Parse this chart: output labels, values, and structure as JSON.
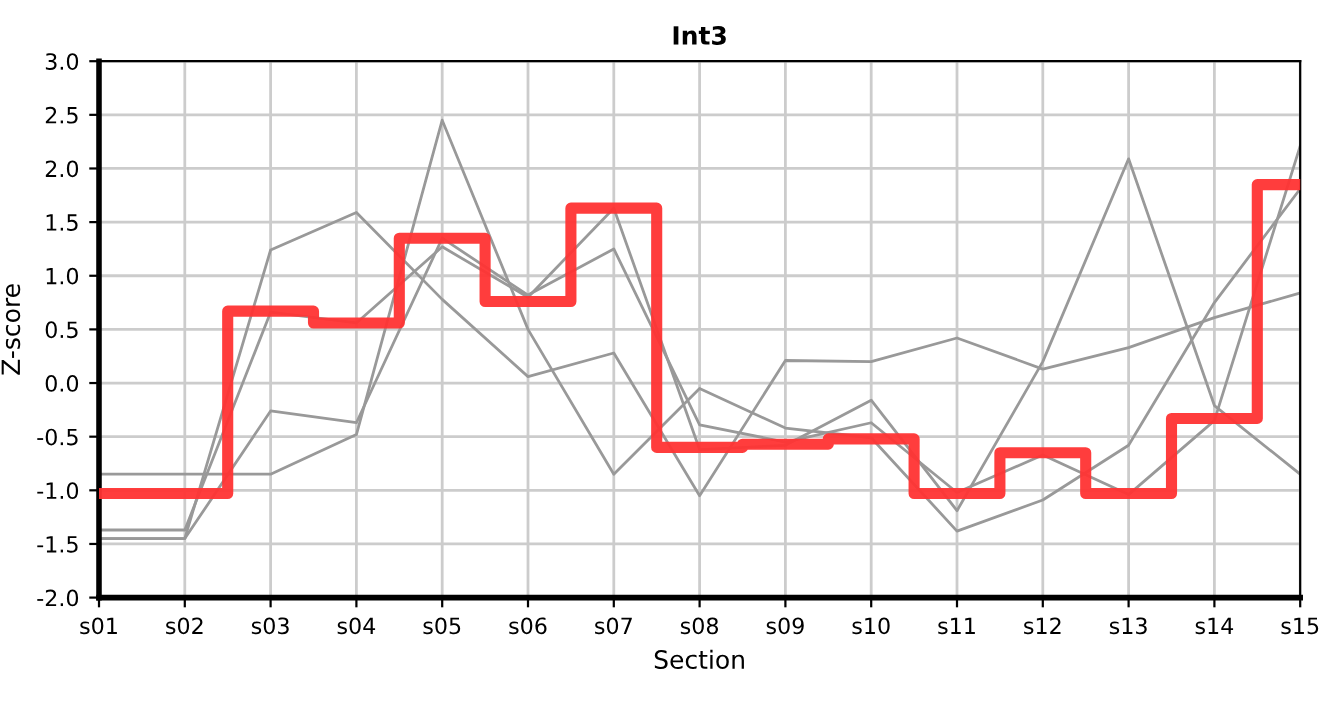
{
  "chart_data": {
    "type": "line",
    "title": "Int3",
    "xlabel": "Section",
    "ylabel": "Z-score",
    "categories": [
      "s01",
      "s02",
      "s03",
      "s04",
      "s05",
      "s06",
      "s07",
      "s08",
      "s09",
      "s10",
      "s11",
      "s12",
      "s13",
      "s14",
      "s15"
    ],
    "ylim": [
      -2,
      3
    ],
    "yticks": [
      {
        "value": -2,
        "label": "-2.0"
      },
      {
        "value": -1.5,
        "label": "-1.5"
      },
      {
        "value": -1,
        "label": "-1.0"
      },
      {
        "value": -0.5,
        "label": "-0.5"
      },
      {
        "value": 0,
        "label": "0.0"
      },
      {
        "value": 0.5,
        "label": "0.5"
      },
      {
        "value": 1,
        "label": "1.0"
      },
      {
        "value": 1.5,
        "label": "1.5"
      },
      {
        "value": 2,
        "label": "2.0"
      },
      {
        "value": 2.5,
        "label": "2.5"
      },
      {
        "value": 3,
        "label": "3.0"
      }
    ],
    "grid": true,
    "legend": false,
    "marker": "none",
    "line_style": "solid",
    "series": [
      {
        "color": "#999999",
        "values": [
          -1.37,
          -1.37,
          0.66,
          0.56,
          1.27,
          0.8,
          1.63,
          -0.62,
          -0.58,
          -0.16,
          -1.19,
          0.2,
          2.09,
          -0.21,
          -0.85
        ]
      },
      {
        "color": "#999999",
        "values": [
          -1.45,
          -1.45,
          -0.26,
          -0.37,
          1.35,
          0.82,
          1.25,
          -0.39,
          -0.55,
          -0.37,
          -1.02,
          -0.67,
          -1.04,
          -0.35,
          2.21
        ]
      },
      {
        "color": "#999999",
        "values": [
          -0.85,
          -0.85,
          -0.85,
          -0.48,
          2.45,
          0.5,
          -0.85,
          -0.05,
          -0.42,
          -0.51,
          -1.38,
          -1.09,
          -0.58,
          0.75,
          1.81
        ]
      },
      {
        "color": "#999999",
        "values": [
          -1.45,
          -1.45,
          1.24,
          1.59,
          0.78,
          0.06,
          0.28,
          -1.05,
          0.21,
          0.2,
          0.42,
          0.13,
          0.33,
          0.61,
          0.84
        ]
      },
      {
        "type": "step",
        "color": "#ff3333",
        "values": [
          -1.03,
          -1.03,
          0.67,
          0.56,
          1.35,
          0.76,
          1.63,
          -0.6,
          -0.57,
          -0.52,
          -1.03,
          -0.65,
          -1.03,
          -0.33,
          1.85
        ]
      }
    ]
  }
}
